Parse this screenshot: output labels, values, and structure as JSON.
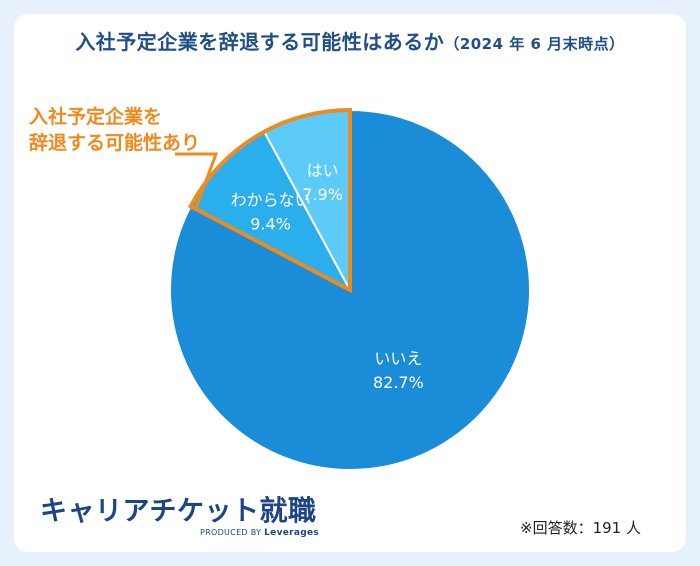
{
  "title": {
    "main": "入社予定企業を辞退する可能性はあるか",
    "sub": "（2024 年 6 月末時点）"
  },
  "callout": {
    "line1": "入社予定企業を",
    "line2": "辞退する可能性あり"
  },
  "chart_data": {
    "type": "pie",
    "title": "入社予定企業を辞退する可能性はあるか（2024 年 6 月末時点）",
    "slices": [
      {
        "label": "いいえ",
        "value": 82.7,
        "value_text": "82.7%",
        "color": "#1a8cd8"
      },
      {
        "label": "わからない",
        "value": 9.4,
        "value_text": "9.4%",
        "color": "#2aaeec"
      },
      {
        "label": "はい",
        "value": 7.9,
        "value_text": "7.9%",
        "color": "#5ccbf7"
      }
    ],
    "highlight": [
      "はい",
      "わからない"
    ],
    "highlight_color": "#ef8a1e"
  },
  "footer": {
    "logo_main": "キャリアチケット",
    "logo_kanji": "就職",
    "produced_by": "PRODUCED BY",
    "produced_brand": "Leverages",
    "respondents": "※回答数：191 人"
  }
}
